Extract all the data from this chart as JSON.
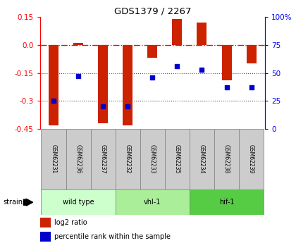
{
  "title": "GDS1379 / 2267",
  "samples": [
    "GSM62231",
    "GSM62236",
    "GSM62237",
    "GSM62232",
    "GSM62233",
    "GSM62235",
    "GSM62234",
    "GSM62238",
    "GSM62239"
  ],
  "log2_ratio": [
    -0.43,
    0.01,
    -0.42,
    -0.43,
    -0.07,
    0.14,
    0.12,
    -0.19,
    -0.1
  ],
  "percentile_rank": [
    25,
    47,
    20,
    20,
    46,
    56,
    53,
    37,
    37
  ],
  "ylim_left": [
    -0.45,
    0.15
  ],
  "ylim_right": [
    0,
    100
  ],
  "yticks_left": [
    0.15,
    0.0,
    -0.15,
    -0.3,
    -0.45
  ],
  "yticks_right": [
    100,
    75,
    50,
    25,
    0
  ],
  "bar_color": "#cc2200",
  "scatter_color": "#0000cc",
  "hline_color": "#cc2200",
  "dotted_line_color": "#555555",
  "bg_color": "#ffffff",
  "plot_bg": "#ffffff",
  "sample_box_color": "#cccccc",
  "legend_bar_label": "log2 ratio",
  "legend_scatter_label": "percentile rank within the sample",
  "strain_label": "strain",
  "group_boundaries": [
    [
      0,
      2,
      "wild type",
      "#ccffcc"
    ],
    [
      3,
      5,
      "vhl-1",
      "#aaee99"
    ],
    [
      6,
      8,
      "hif-1",
      "#55cc44"
    ]
  ],
  "bar_width": 0.4
}
